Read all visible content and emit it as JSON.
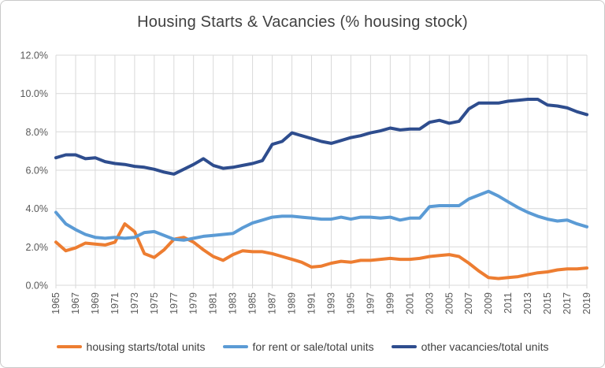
{
  "chart_data": {
    "type": "line",
    "title": "Housing Starts & Vacancies (% housing stock)",
    "x_years": [
      1965,
      1966,
      1967,
      1968,
      1969,
      1970,
      1971,
      1972,
      1973,
      1974,
      1975,
      1976,
      1977,
      1978,
      1979,
      1980,
      1981,
      1982,
      1983,
      1984,
      1985,
      1986,
      1987,
      1988,
      1989,
      1990,
      1991,
      1992,
      1993,
      1994,
      1995,
      1996,
      1997,
      1998,
      1999,
      2000,
      2001,
      2002,
      2003,
      2004,
      2005,
      2006,
      2007,
      2008,
      2009,
      2010,
      2011,
      2012,
      2013,
      2014,
      2015,
      2016,
      2017,
      2018,
      2019
    ],
    "x_tick_labels": [
      "1965",
      "1967",
      "1969",
      "1971",
      "1973",
      "1975",
      "1977",
      "1979",
      "1981",
      "1983",
      "1985",
      "1987",
      "1989",
      "1991",
      "1993",
      "1995",
      "1997",
      "1999",
      "2001",
      "2003",
      "2005",
      "2007",
      "2009",
      "2011",
      "2013",
      "2015",
      "2017",
      "2019"
    ],
    "ylim": [
      0,
      12
    ],
    "y_tick_step": 2,
    "y_tick_labels": [
      "0.0%",
      "2.0%",
      "4.0%",
      "6.0%",
      "8.0%",
      "10.0%",
      "12.0%"
    ],
    "grid": true,
    "legend_position": "bottom",
    "series": [
      {
        "name": "housing starts/total units",
        "color": "#ED7D31",
        "values": [
          2.25,
          1.8,
          1.95,
          2.2,
          2.15,
          2.1,
          2.25,
          3.2,
          2.8,
          1.65,
          1.45,
          1.85,
          2.4,
          2.5,
          2.25,
          1.85,
          1.5,
          1.3,
          1.6,
          1.8,
          1.75,
          1.75,
          1.65,
          1.5,
          1.35,
          1.2,
          0.95,
          1.0,
          1.15,
          1.25,
          1.2,
          1.3,
          1.3,
          1.35,
          1.4,
          1.35,
          1.35,
          1.4,
          1.5,
          1.55,
          1.6,
          1.5,
          1.15,
          0.75,
          0.4,
          0.35,
          0.4,
          0.45,
          0.55,
          0.65,
          0.7,
          0.8,
          0.85,
          0.85,
          0.9
        ]
      },
      {
        "name": "for rent or sale/total units",
        "color": "#5B9BD5",
        "values": [
          3.8,
          3.2,
          2.9,
          2.65,
          2.5,
          2.45,
          2.5,
          2.45,
          2.5,
          2.75,
          2.8,
          2.6,
          2.4,
          2.35,
          2.45,
          2.55,
          2.6,
          2.65,
          2.7,
          3.0,
          3.25,
          3.4,
          3.55,
          3.6,
          3.6,
          3.55,
          3.5,
          3.45,
          3.45,
          3.55,
          3.45,
          3.55,
          3.55,
          3.5,
          3.55,
          3.4,
          3.5,
          3.5,
          4.1,
          4.15,
          4.15,
          4.15,
          4.5,
          4.7,
          4.9,
          4.65,
          4.35,
          4.05,
          3.8,
          3.6,
          3.45,
          3.35,
          3.4,
          3.2,
          3.05
        ]
      },
      {
        "name": "other vacancies/total units",
        "color": "#2E4D8E",
        "values": [
          6.65,
          6.8,
          6.8,
          6.6,
          6.65,
          6.45,
          6.35,
          6.3,
          6.2,
          6.15,
          6.05,
          5.9,
          5.8,
          6.05,
          6.3,
          6.6,
          6.25,
          6.1,
          6.15,
          6.25,
          6.35,
          6.5,
          7.35,
          7.5,
          7.95,
          7.8,
          7.65,
          7.5,
          7.4,
          7.55,
          7.7,
          7.8,
          7.95,
          8.05,
          8.2,
          8.1,
          8.15,
          8.15,
          8.5,
          8.6,
          8.45,
          8.55,
          9.2,
          9.5,
          9.5,
          9.5,
          9.6,
          9.65,
          9.7,
          9.7,
          9.4,
          9.35,
          9.25,
          9.05,
          8.9
        ]
      }
    ]
  },
  "styles": {
    "title_color": "#404040",
    "axis_label_color": "#595959",
    "gridline_color": "#D9D9D9",
    "background": "#FFFFFF",
    "border_color": "#C9C9C9"
  }
}
